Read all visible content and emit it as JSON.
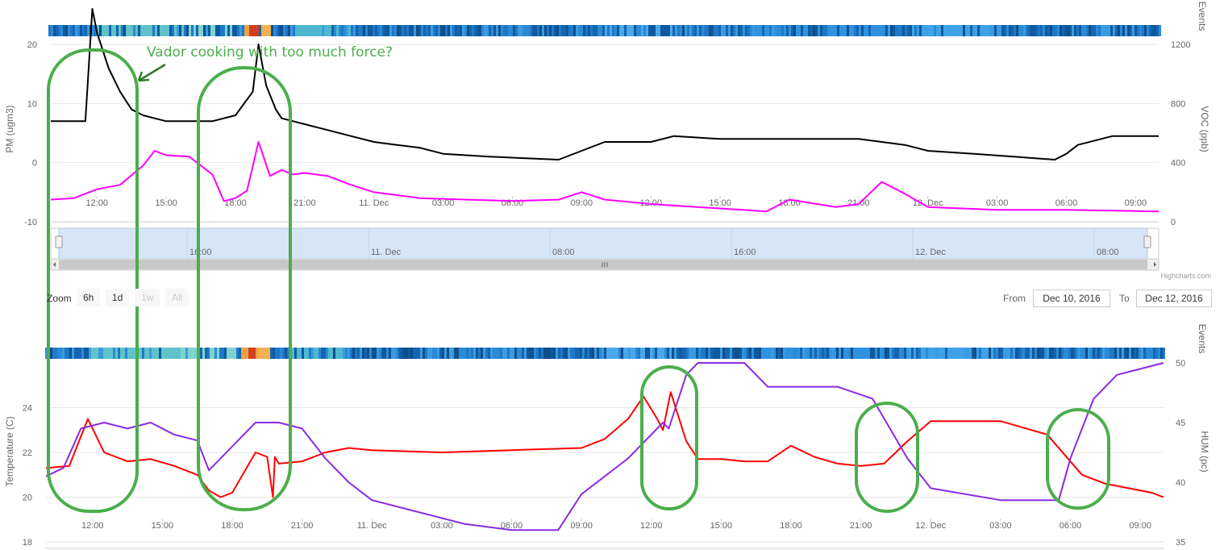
{
  "annotation": "Vador cooking with too much force?",
  "credits": "Highcharts.com",
  "range_selector": {
    "zoom_label": "Zoom",
    "buttons": [
      {
        "label": "6h",
        "enabled": true
      },
      {
        "label": "1d",
        "enabled": true
      },
      {
        "label": "1w",
        "enabled": false
      },
      {
        "label": "All",
        "enabled": false
      }
    ],
    "from_label": "From",
    "from_value": "Dec 10, 2016",
    "to_label": "To",
    "to_value": "Dec 12, 2016"
  },
  "navigator": {
    "tick_labels": [
      "16:00",
      "11. Dec",
      "08:00",
      "16:00",
      "12. Dec",
      "08:00"
    ]
  },
  "colors": {
    "pm": "#000000",
    "voc": "#ff00ff",
    "temperature": "#ff0000",
    "humidity": "#8a2be2",
    "annotation": "#4cae4c",
    "event_strip_base": "#0d5a9e"
  },
  "chart_data": [
    {
      "type": "line",
      "time_range": [
        "2016-12-10 10:00",
        "2016-12-12 10:00"
      ],
      "x_tick_labels": [
        "12:00",
        "15:00",
        "18:00",
        "21:00",
        "11. Dec",
        "03:00",
        "06:00",
        "09:00",
        "12:00",
        "15:00",
        "18:00",
        "21:00",
        "12. Dec",
        "03:00",
        "06:00",
        "09:00"
      ],
      "strip_label": "Events",
      "ylabel": "PM (ugm3)",
      "ylim": [
        -10,
        20
      ],
      "y_ticks": [
        "20",
        "10",
        "0",
        "-10"
      ],
      "y2label": "VOC (ppb)",
      "y2lim": [
        0,
        1200
      ],
      "y2_ticks": [
        "1200",
        "800",
        "400",
        "0"
      ],
      "series": [
        {
          "axis": "left",
          "x": [
            "2016-12-10 10:00",
            "2016-12-10 11:00",
            "2016-12-10 11:30",
            "2016-12-10 11:48",
            "2016-12-10 12:00",
            "2016-12-10 12:30",
            "2016-12-10 13:00",
            "2016-12-10 13:30",
            "2016-12-10 14:00",
            "2016-12-10 14:30",
            "2016-12-10 15:00",
            "2016-12-10 16:00",
            "2016-12-10 17:00",
            "2016-12-10 18:00",
            "2016-12-10 18:45",
            "2016-12-10 19:00",
            "2016-12-10 19:20",
            "2016-12-10 19:45",
            "2016-12-10 20:00",
            "2016-12-10 20:30",
            "2016-12-10 21:00",
            "2016-12-10 22:00",
            "2016-12-10 23:00",
            "2016-12-11 00:00",
            "2016-12-11 01:00",
            "2016-12-11 02:00",
            "2016-12-11 03:00",
            "2016-12-11 05:00",
            "2016-12-11 08:00",
            "2016-12-11 09:00",
            "2016-12-11 10:00",
            "2016-12-11 12:00",
            "2016-12-11 13:00",
            "2016-12-11 15:00",
            "2016-12-11 18:00",
            "2016-12-11 21:00",
            "2016-12-11 22:00",
            "2016-12-11 23:00",
            "2016-12-12 00:00",
            "2016-12-12 02:00",
            "2016-12-12 05:30",
            "2016-12-12 06:00",
            "2016-12-12 06:30",
            "2016-12-12 08:00",
            "2016-12-12 10:00"
          ],
          "values": [
            7,
            7,
            7,
            26,
            22,
            16,
            12,
            9,
            8,
            7.5,
            7,
            7,
            7,
            8,
            12,
            20,
            13,
            9,
            7.5,
            7,
            6.5,
            5.5,
            4.5,
            3.5,
            3,
            2.5,
            1.5,
            1,
            0.5,
            2,
            3.5,
            3.5,
            4.5,
            4,
            4,
            4,
            3.5,
            3,
            2,
            1.5,
            0.5,
            1.5,
            3,
            4.5,
            4.5
          ]
        },
        {
          "axis": "right",
          "x": [
            "2016-12-10 10:00",
            "2016-12-10 11:00",
            "2016-12-10 12:00",
            "2016-12-10 13:00",
            "2016-12-10 14:00",
            "2016-12-10 14:30",
            "2016-12-10 15:00",
            "2016-12-10 16:00",
            "2016-12-10 17:00",
            "2016-12-10 17:30",
            "2016-12-10 18:00",
            "2016-12-10 18:30",
            "2016-12-10 19:00",
            "2016-12-10 19:30",
            "2016-12-10 20:00",
            "2016-12-10 20:30",
            "2016-12-10 21:00",
            "2016-12-10 22:00",
            "2016-12-10 23:00",
            "2016-12-11 00:00",
            "2016-12-11 02:00",
            "2016-12-11 06:00",
            "2016-12-11 08:00",
            "2016-12-11 09:00",
            "2016-12-11 10:00",
            "2016-12-11 12:00",
            "2016-12-11 14:00",
            "2016-12-11 16:00",
            "2016-12-11 17:00",
            "2016-12-11 18:00",
            "2016-12-11 20:00",
            "2016-12-11 21:00",
            "2016-12-11 22:00",
            "2016-12-11 23:00",
            "2016-12-12 00:00",
            "2016-12-12 03:00",
            "2016-12-12 06:00",
            "2016-12-12 10:00"
          ],
          "values": [
            150,
            160,
            220,
            250,
            380,
            480,
            450,
            440,
            320,
            140,
            160,
            210,
            540,
            310,
            350,
            320,
            330,
            310,
            250,
            200,
            160,
            140,
            150,
            200,
            150,
            120,
            100,
            80,
            70,
            150,
            100,
            120,
            270,
            190,
            100,
            80,
            80,
            70
          ]
        }
      ]
    },
    {
      "type": "line",
      "time_range": [
        "2016-12-10 10:00",
        "2016-12-12 10:00"
      ],
      "x_tick_labels": [
        "12:00",
        "15:00",
        "18:00",
        "21:00",
        "11. Dec",
        "03:00",
        "06:00",
        "09:00",
        "12:00",
        "15:00",
        "18:00",
        "21:00",
        "12. Dec",
        "03:00",
        "06:00",
        "09:00"
      ],
      "strip_label": "Events",
      "ylabel": "Temperature (C)",
      "ylim": [
        18,
        26
      ],
      "y_ticks": [
        "24",
        "22",
        "20",
        "18"
      ],
      "y2label": "HUM (pc)",
      "y2lim": [
        35,
        50
      ],
      "y2_ticks": [
        "50",
        "45",
        "40",
        "35"
      ],
      "series": [
        {
          "axis": "left",
          "x": [
            "2016-12-10 10:00",
            "2016-12-10 11:00",
            "2016-12-10 11:48",
            "2016-12-10 12:30",
            "2016-12-10 13:30",
            "2016-12-10 14:30",
            "2016-12-10 15:30",
            "2016-12-10 16:30",
            "2016-12-10 17:00",
            "2016-12-10 17:30",
            "2016-12-10 18:00",
            "2016-12-10 19:00",
            "2016-12-10 19:30",
            "2016-12-10 19:45",
            "2016-12-10 19:50",
            "2016-12-10 20:00",
            "2016-12-10 21:00",
            "2016-12-10 22:00",
            "2016-12-10 23:00",
            "2016-12-11 00:00",
            "2016-12-11 03:00",
            "2016-12-11 06:00",
            "2016-12-11 09:00",
            "2016-12-11 10:00",
            "2016-12-11 11:00",
            "2016-12-11 11:40",
            "2016-12-11 12:15",
            "2016-12-11 12:30",
            "2016-12-11 12:50",
            "2016-12-11 13:30",
            "2016-12-11 14:00",
            "2016-12-11 15:00",
            "2016-12-11 16:00",
            "2016-12-11 17:00",
            "2016-12-11 18:00",
            "2016-12-11 19:00",
            "2016-12-11 20:00",
            "2016-12-11 21:00",
            "2016-12-11 22:00",
            "2016-12-11 23:00",
            "2016-12-12 00:00",
            "2016-12-12 03:00",
            "2016-12-12 05:00",
            "2016-12-12 06:30",
            "2016-12-12 07:30",
            "2016-12-12 08:30",
            "2016-12-12 09:30",
            "2016-12-12 10:00"
          ],
          "values": [
            21.3,
            21.4,
            23.5,
            22.0,
            21.6,
            21.7,
            21.4,
            21.0,
            20.3,
            20.0,
            20.2,
            22.0,
            21.8,
            20.0,
            21.8,
            21.5,
            21.6,
            22.0,
            22.2,
            22.1,
            22.0,
            22.1,
            22.2,
            22.6,
            23.5,
            24.5,
            23.5,
            23.0,
            24.7,
            22.5,
            21.7,
            21.7,
            21.6,
            21.6,
            22.3,
            21.8,
            21.5,
            21.4,
            21.5,
            22.5,
            23.4,
            23.4,
            22.8,
            21.0,
            20.6,
            20.4,
            20.2,
            20.0
          ]
        },
        {
          "axis": "right",
          "x": [
            "2016-12-10 10:00",
            "2016-12-10 10:45",
            "2016-12-10 11:30",
            "2016-12-10 12:30",
            "2016-12-10 13:30",
            "2016-12-10 14:30",
            "2016-12-10 15:30",
            "2016-12-10 16:30",
            "2016-12-10 17:00",
            "2016-12-10 18:00",
            "2016-12-10 19:00",
            "2016-12-10 20:00",
            "2016-12-10 21:00",
            "2016-12-10 22:00",
            "2016-12-10 23:00",
            "2016-12-11 00:00",
            "2016-12-11 02:00",
            "2016-12-11 04:00",
            "2016-12-11 06:00",
            "2016-12-11 08:00",
            "2016-12-11 09:00",
            "2016-12-11 11:00",
            "2016-12-11 12:30",
            "2016-12-11 12:45",
            "2016-12-11 13:30",
            "2016-12-11 14:00",
            "2016-12-11 15:00",
            "2016-12-11 16:00",
            "2016-12-11 17:00",
            "2016-12-11 18:00",
            "2016-12-11 20:00",
            "2016-12-11 21:30",
            "2016-12-11 23:00",
            "2016-12-12 00:00",
            "2016-12-12 03:00",
            "2016-12-12 05:30",
            "2016-12-12 06:00",
            "2016-12-12 07:00",
            "2016-12-12 08:00",
            "2016-12-12 10:00"
          ],
          "values": [
            40.5,
            41.2,
            44.5,
            45.0,
            44.5,
            45.0,
            44.0,
            43.5,
            41.0,
            43.0,
            45.0,
            45.0,
            44.5,
            42.0,
            40.0,
            38.5,
            37.5,
            36.5,
            36.0,
            36.0,
            39.0,
            42.0,
            45.0,
            44.5,
            49.0,
            50.0,
            50.0,
            50.0,
            48.0,
            48.0,
            48.0,
            47.0,
            42.0,
            39.5,
            38.5,
            38.5,
            42.0,
            47.0,
            49.0,
            50.0
          ]
        }
      ]
    }
  ]
}
